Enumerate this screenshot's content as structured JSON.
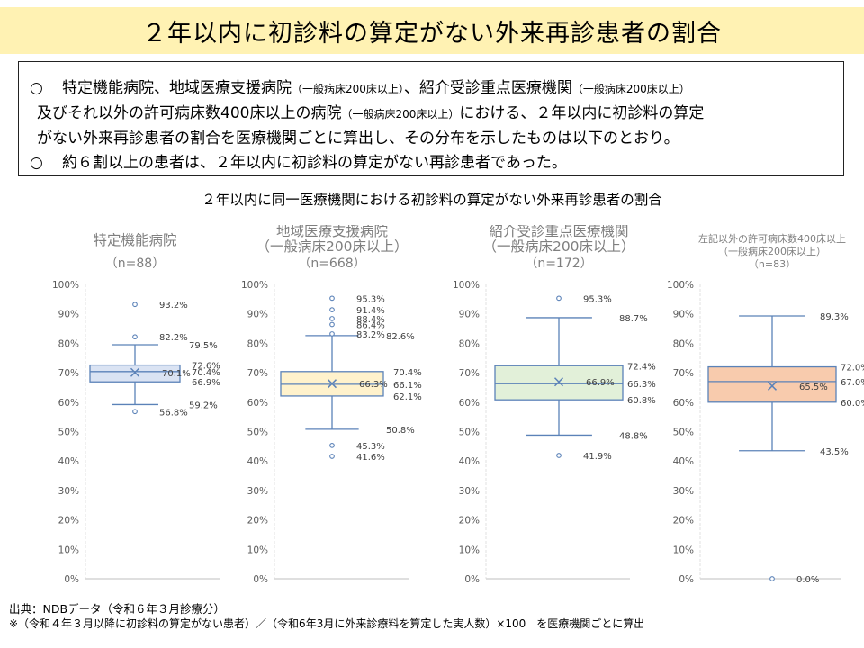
{
  "title": "２年以内に初診料の算定がない外来再診患者の割合",
  "summary": {
    "bullet": "○",
    "l1_a": "特定機能病院、地域医療支援病院",
    "l1_b": "（一般病床200床以上）",
    "l1_c": "、紹介受診重点医療機関",
    "l1_d": "（一般病床200床以上）",
    "l2_a": "及びそれ以外の許可病床数400床以上の病院",
    "l2_b": "（一般病床200床以上）",
    "l2_c": "における、２年以内に初診料の算定",
    "l3": "がない外来再診患者の割合を医療機関ごとに算出し、その分布を示したものは以下のとおり。",
    "l4": "約６割以上の患者は、２年以内に初診料の算定がない再診患者であった。"
  },
  "chart_subtitle": "２年以内に同一医療機関における初診料の算定がない外来再診患者の割合",
  "source_line1": "出典：NDBデータ（令和６年３月診療分）",
  "source_line2": "※（令和４年３月以降に初診料の算定がない患者）／（令和6年3月に外来診療料を算定した実人数）×100　を医療機関ごとに算出",
  "chart_data": [
    {
      "type": "box",
      "title": "特定機能病院",
      "subtitle": "",
      "n": "（n=88）",
      "ylim": [
        0,
        100
      ],
      "yticks": [
        "0%",
        "10%",
        "20%",
        "30%",
        "40%",
        "50%",
        "60%",
        "70%",
        "80%",
        "90%",
        "100%"
      ],
      "box": {
        "whisker_low": 59.2,
        "q1": 66.9,
        "median": 70.4,
        "q3": 72.6,
        "whisker_high": 79.5,
        "mean": 70.1
      },
      "outliers": [
        93.2,
        82.2,
        56.8
      ],
      "fill": "#dae3f3",
      "labels": [
        "93.2%",
        "82.2%",
        "79.5%",
        "72.6%",
        "70.4%",
        "66.9%",
        "70.1%",
        "59.2%",
        "56.8%"
      ]
    },
    {
      "type": "box",
      "title": "地域医療支援病院",
      "subtitle": "（一般病床200床以上）",
      "n": "（n=668）",
      "ylim": [
        0,
        100
      ],
      "yticks": [
        "0%",
        "10%",
        "20%",
        "30%",
        "40%",
        "50%",
        "60%",
        "70%",
        "80%",
        "90%",
        "100%"
      ],
      "box": {
        "whisker_low": 50.8,
        "q1": 62.1,
        "median": 66.1,
        "q3": 70.4,
        "whisker_high": 82.6,
        "mean": 66.3
      },
      "outliers": [
        95.3,
        91.4,
        88.4,
        86.4,
        83.2,
        45.3,
        41.6
      ],
      "fill": "#fff2cc",
      "labels": [
        "95.3%",
        "91.4%",
        "88.4%",
        "86.4%",
        "83.2%",
        "82.6%",
        "70.4%",
        "66.1%",
        "62.1%",
        "66.3%",
        "50.8%",
        "45.3%",
        "41.6%"
      ]
    },
    {
      "type": "box",
      "title": "紹介受診重点医療機関",
      "subtitle": "（一般病床200床以上）",
      "n": "（n=172）",
      "ylim": [
        0,
        100
      ],
      "yticks": [
        "0%",
        "10%",
        "20%",
        "30%",
        "40%",
        "50%",
        "60%",
        "70%",
        "80%",
        "90%",
        "100%"
      ],
      "box": {
        "whisker_low": 48.8,
        "q1": 60.8,
        "median": 66.3,
        "q3": 72.4,
        "whisker_high": 88.7,
        "mean": 66.9
      },
      "outliers": [
        95.3,
        41.9
      ],
      "fill": "#e2f0d9",
      "labels": [
        "95.3%",
        "88.7%",
        "72.4%",
        "66.3%",
        "60.8%",
        "66.9%",
        "48.8%",
        "41.9%"
      ]
    },
    {
      "type": "box",
      "title": "左記以外の許可病床数400床以上",
      "subtitle": "（一般病床200床以上）",
      "n": "（n=83）",
      "ylim": [
        0,
        100
      ],
      "yticks": [
        "0%",
        "10%",
        "20%",
        "30%",
        "40%",
        "50%",
        "60%",
        "70%",
        "80%",
        "90%",
        "100%"
      ],
      "box": {
        "whisker_low": 43.5,
        "q1": 60.0,
        "median": 67.0,
        "q3": 72.0,
        "whisker_high": 89.3,
        "mean": 65.5
      },
      "outliers": [
        0.0
      ],
      "fill": "#f8cbad",
      "labels": [
        "89.3%",
        "72.0%",
        "67.0%",
        "60.0%",
        "65.5%",
        "43.5%",
        "0.0%"
      ]
    }
  ]
}
